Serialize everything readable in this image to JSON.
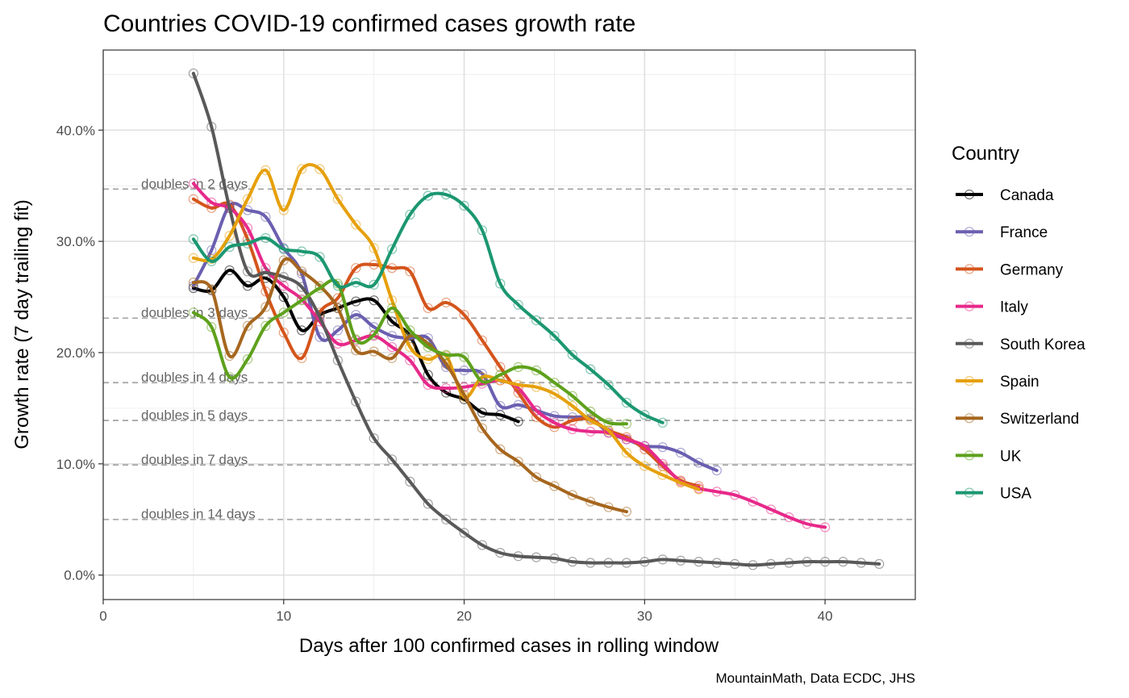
{
  "chart_data": {
    "type": "line",
    "title": "Countries COVID-19 confirmed cases growth rate",
    "xlabel": "Days after 100 confirmed cases in rolling window",
    "ylabel": "Growth rate (7 day trailing fit)",
    "caption": "MountainMath, Data ECDC, JHS",
    "legend_title": "Country",
    "legend_position": "right",
    "grid": true,
    "xlim": [
      0,
      45
    ],
    "ylim": [
      -2.2,
      47.2
    ],
    "x_ticks": [
      0,
      10,
      20,
      30,
      40
    ],
    "x_tick_labels": [
      "0",
      "10",
      "20",
      "30",
      "40"
    ],
    "y_ticks": [
      0,
      10,
      20,
      30,
      40
    ],
    "y_tick_labels": [
      "0.0%",
      "10.0%",
      "20.0%",
      "30.0%",
      "40.0%"
    ],
    "reference_lines": [
      {
        "label": "doubles in 2 days",
        "y": 34.7
      },
      {
        "label": "doubles in 3 days",
        "y": 23.1
      },
      {
        "label": "doubles in 4 days",
        "y": 17.3
      },
      {
        "label": "doubles in 5 days",
        "y": 13.9
      },
      {
        "label": "doubles in 7 days",
        "y": 9.9
      },
      {
        "label": "doubles in 14 days",
        "y": 5.0
      }
    ],
    "series": [
      {
        "name": "Canada",
        "color": "#000000",
        "x": [
          5,
          6,
          7,
          8,
          9,
          10,
          11,
          12,
          13,
          14,
          15,
          16,
          17,
          18,
          19,
          20,
          21,
          22,
          23
        ],
        "y": [
          25.8,
          25.6,
          27.4,
          26.0,
          26.7,
          25.0,
          22.0,
          23.4,
          24.0,
          24.6,
          24.7,
          22.8,
          21.5,
          18.0,
          16.4,
          15.8,
          14.6,
          14.4,
          13.8
        ]
      },
      {
        "name": "France",
        "color": "#6a5fb0",
        "x": [
          5,
          6,
          7,
          8,
          9,
          10,
          11,
          12,
          13,
          14,
          15,
          16,
          17,
          18,
          19,
          20,
          21,
          22,
          23,
          24,
          25,
          26,
          27,
          28,
          29,
          30,
          31,
          32,
          33,
          34
        ],
        "y": [
          26.0,
          29.2,
          33.2,
          32.8,
          32.2,
          29.4,
          27.1,
          21.4,
          22.0,
          23.4,
          22.3,
          21.5,
          21.3,
          21.3,
          18.7,
          18.4,
          18.1,
          15.2,
          15.3,
          14.8,
          14.3,
          14.2,
          14.1,
          12.8,
          12.2,
          11.6,
          11.5,
          11.0,
          10.1,
          9.4
        ]
      },
      {
        "name": "Germany",
        "color": "#d4551c",
        "x": [
          5,
          6,
          7,
          8,
          9,
          10,
          11,
          12,
          13,
          14,
          15,
          16,
          17,
          18,
          19,
          20,
          21,
          22,
          23,
          24,
          25,
          26,
          27,
          28,
          29,
          30,
          31,
          32,
          33
        ],
        "y": [
          33.8,
          33.0,
          33.3,
          30.2,
          25.5,
          21.8,
          19.5,
          23.6,
          24.9,
          27.6,
          27.9,
          27.6,
          27.3,
          24.0,
          24.5,
          23.4,
          21.1,
          18.7,
          16.4,
          14.2,
          13.3,
          13.9,
          14.0,
          13.0,
          12.4,
          11.3,
          9.8,
          8.5,
          8.0
        ]
      },
      {
        "name": "Italy",
        "color": "#e7298a",
        "x": [
          5,
          6,
          7,
          8,
          9,
          10,
          11,
          12,
          13,
          14,
          15,
          16,
          17,
          18,
          19,
          20,
          21,
          22,
          23,
          24,
          25,
          26,
          27,
          28,
          29,
          30,
          31,
          32,
          33,
          34,
          35,
          36,
          37,
          38,
          39,
          40
        ],
        "y": [
          35.2,
          33.5,
          33.0,
          31.2,
          27.6,
          26.0,
          24.8,
          22.8,
          20.8,
          21.1,
          21.5,
          20.5,
          19.3,
          17.1,
          16.8,
          16.9,
          17.2,
          17.5,
          16.8,
          14.8,
          13.7,
          13.1,
          12.9,
          12.8,
          12.2,
          11.6,
          10.0,
          8.4,
          7.8,
          7.5,
          7.2,
          6.6,
          5.9,
          5.2,
          4.6,
          4.3
        ]
      },
      {
        "name": "South Korea",
        "color": "#595959",
        "x": [
          5,
          6,
          7,
          8,
          9,
          10,
          11,
          12,
          13,
          14,
          15,
          16,
          17,
          18,
          19,
          20,
          21,
          22,
          23,
          24,
          25,
          26,
          27,
          28,
          29,
          30,
          31,
          32,
          33,
          34,
          35,
          36,
          37,
          38,
          39,
          40,
          41,
          42,
          43
        ],
        "y": [
          45.1,
          40.3,
          33.0,
          27.3,
          27.2,
          26.8,
          25.9,
          23.2,
          19.3,
          15.6,
          12.3,
          10.4,
          8.4,
          6.4,
          5.0,
          3.8,
          2.7,
          2.0,
          1.7,
          1.6,
          1.5,
          1.2,
          1.1,
          1.1,
          1.1,
          1.2,
          1.4,
          1.3,
          1.2,
          1.1,
          1.0,
          0.9,
          1.0,
          1.1,
          1.2,
          1.2,
          1.2,
          1.1,
          1.0
        ]
      },
      {
        "name": "Spain",
        "color": "#e6a00c",
        "x": [
          5,
          6,
          7,
          8,
          9,
          10,
          11,
          12,
          13,
          14,
          15,
          16,
          17,
          18,
          19,
          20,
          21,
          22,
          23,
          24,
          25,
          26,
          27,
          28,
          29,
          30,
          31,
          32,
          33
        ],
        "y": [
          28.5,
          28.4,
          30.5,
          33.8,
          36.4,
          32.8,
          36.5,
          36.5,
          33.8,
          31.5,
          29.4,
          24.7,
          20.5,
          19.4,
          19.7,
          16.0,
          17.8,
          17.5,
          17.1,
          16.9,
          16.3,
          15.2,
          13.9,
          13.0,
          11.0,
          9.8,
          9.0,
          8.3,
          7.7
        ]
      },
      {
        "name": "Switzerland",
        "color": "#a6661e",
        "x": [
          5,
          6,
          7,
          8,
          9,
          10,
          11,
          12,
          13,
          14,
          15,
          16,
          17,
          18,
          19,
          20,
          21,
          22,
          23,
          24,
          25,
          26,
          27,
          28,
          29
        ],
        "y": [
          26.3,
          25.7,
          19.7,
          22.4,
          24.1,
          28.3,
          27.3,
          26.0,
          24.0,
          20.2,
          20.1,
          19.5,
          21.5,
          20.8,
          19.0,
          16.2,
          13.2,
          11.3,
          10.2,
          8.8,
          8.0,
          7.2,
          6.6,
          6.1,
          5.7
        ]
      },
      {
        "name": "UK",
        "color": "#5ea11c",
        "x": [
          5,
          6,
          7,
          8,
          9,
          10,
          11,
          12,
          13,
          14,
          15,
          16,
          17,
          18,
          19,
          20,
          21,
          22,
          23,
          24,
          25,
          26,
          27,
          28,
          29
        ],
        "y": [
          23.6,
          22.3,
          17.8,
          19.4,
          22.4,
          23.6,
          24.7,
          25.8,
          26.2,
          21.2,
          21.6,
          24.0,
          22.0,
          20.5,
          19.8,
          19.6,
          17.4,
          18.0,
          18.7,
          18.4,
          17.3,
          16.1,
          14.7,
          13.7,
          13.6
        ]
      },
      {
        "name": "USA",
        "color": "#1b9771",
        "x": [
          5,
          6,
          7,
          8,
          9,
          10,
          11,
          12,
          13,
          14,
          15,
          16,
          17,
          18,
          19,
          20,
          21,
          22,
          23,
          24,
          25,
          26,
          27,
          28,
          29,
          30,
          31
        ],
        "y": [
          30.2,
          28.2,
          29.5,
          29.8,
          30.3,
          29.3,
          29.1,
          28.6,
          26.0,
          26.3,
          26.1,
          29.3,
          32.4,
          34.1,
          34.2,
          33.2,
          31.0,
          26.2,
          24.3,
          22.9,
          21.5,
          19.8,
          18.5,
          17.1,
          15.5,
          14.4,
          13.7
        ]
      }
    ]
  }
}
